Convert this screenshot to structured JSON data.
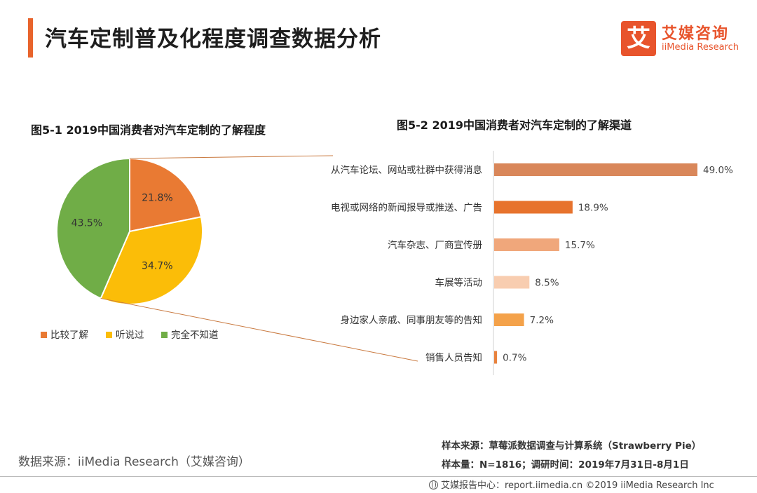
{
  "header": {
    "title": "汽车定制普及化程度调查数据分析",
    "logo_mark": "艾",
    "logo_cn": "艾媒咨询",
    "logo_en": "iiMedia Research"
  },
  "colors": {
    "accent": "#e8642c",
    "pie": [
      "#e97a33",
      "#fbbd08",
      "#70ad47"
    ],
    "bars": [
      "#d9875a",
      "#e7732d",
      "#f0a77b",
      "#f8cdb0",
      "#f4a24a",
      "#e8823d"
    ],
    "connector": "#c9793f"
  },
  "chart_data": [
    {
      "type": "pie",
      "title": "图5-1 2019中国消费者对汽车定制的了解程度",
      "categories": [
        "比较了解",
        "听说过",
        "完全不知道"
      ],
      "values": [
        21.8,
        34.7,
        43.5
      ],
      "labels": [
        "21.8%",
        "34.7%",
        "43.5%"
      ],
      "legend_position": "bottom"
    },
    {
      "type": "bar",
      "orientation": "horizontal",
      "title": "图5-2 2019中国消费者对汽车定制的了解渠道",
      "categories": [
        "从汽车论坛、网站或社群中获得消息",
        "电视或网络的新闻报导或推送、广告",
        "汽车杂志、厂商宣传册",
        "车展等活动",
        "身边家人亲戚、同事朋友等的告知",
        "销售人员告知"
      ],
      "values": [
        49.0,
        18.9,
        15.7,
        8.5,
        7.2,
        0.7
      ],
      "labels": [
        "49.0%",
        "18.9%",
        "15.7%",
        "8.5%",
        "7.2%",
        "0.7%"
      ],
      "xlim": [
        0,
        55
      ]
    }
  ],
  "footer": {
    "source": "数据来源：iiMedia Research（艾媒咨询）",
    "sample_source": "样本来源：草莓派数据调查与计算系统（Strawberry Pie）",
    "sample_size": "样本量：N=1816；调研时间：2019年7月31日-8月1日",
    "copyright": "艾媒报告中心：report.iimedia.cn  ©2019  iiMedia Research Inc"
  }
}
